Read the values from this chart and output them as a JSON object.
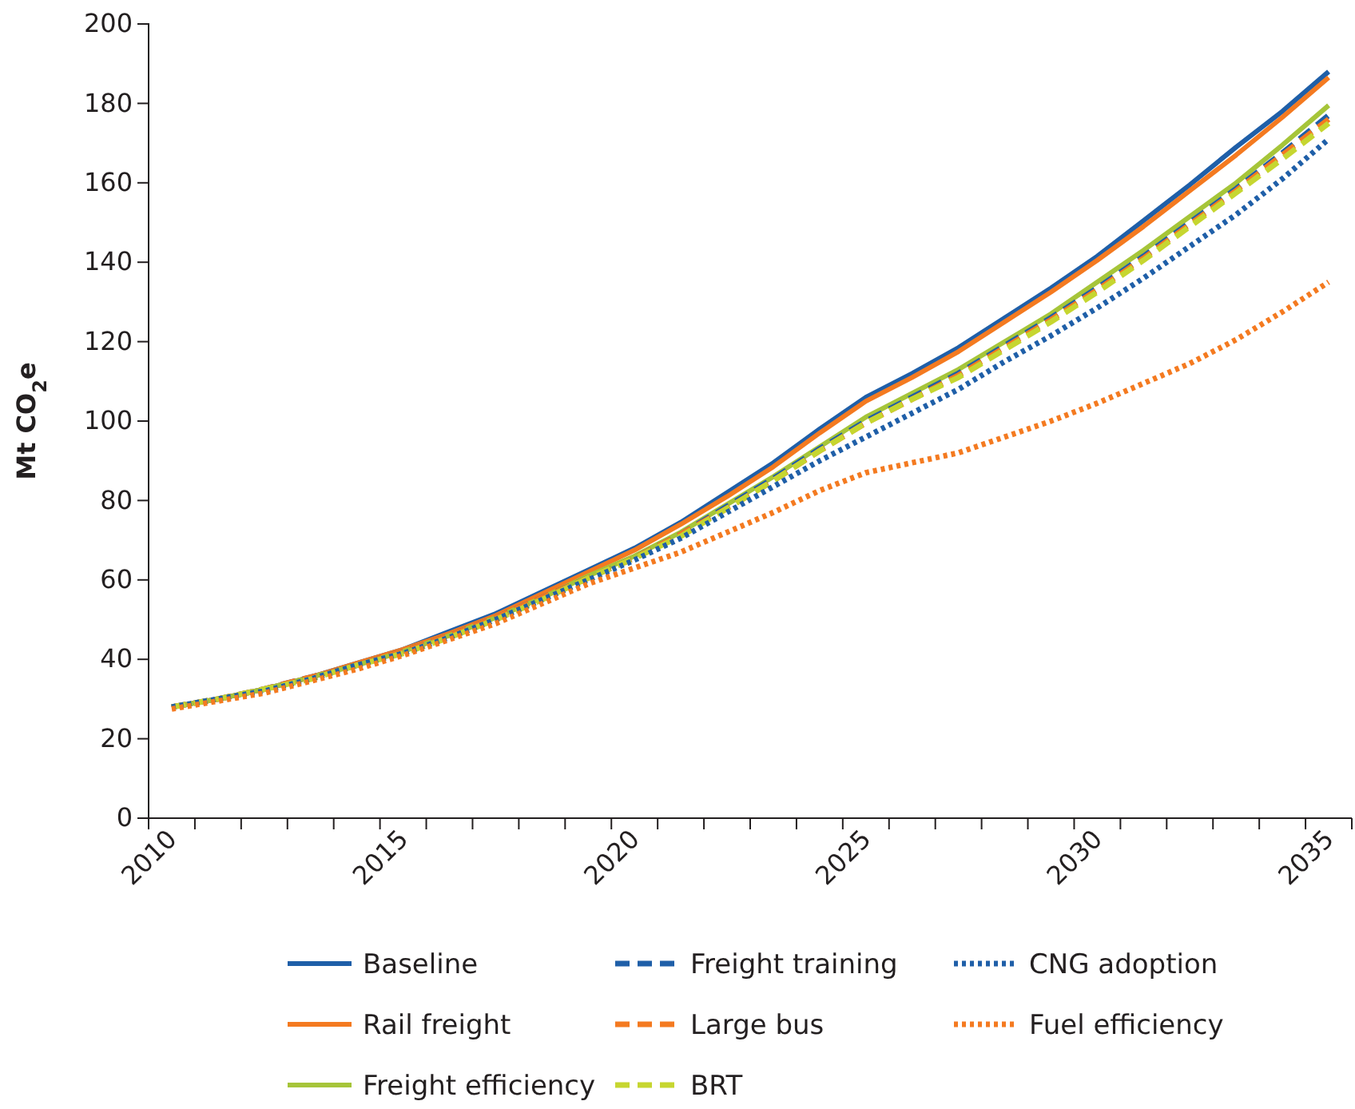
{
  "chart_data": {
    "type": "line",
    "ylabel": "Mt CO$_{2}$e",
    "categories": [
      "2010",
      null,
      null,
      null,
      null,
      "2015",
      null,
      null,
      null,
      null,
      "2020",
      null,
      null,
      null,
      null,
      "2025",
      null,
      null,
      null,
      null,
      "2030",
      null,
      null,
      null,
      null,
      "2035"
    ],
    "ylim": [
      0,
      200
    ],
    "yticks": [
      0,
      20,
      40,
      60,
      80,
      100,
      120,
      140,
      160,
      180,
      200
    ],
    "grid": false,
    "legend": "bottom",
    "series": [
      {
        "name": "Baseline",
        "color": "#1f5fa8",
        "line_style": "solid",
        "values": [
          28,
          30,
          32.5,
          35.5,
          39,
          42.5,
          47,
          51.5,
          57,
          62.5,
          68,
          74.5,
          82,
          89.5,
          98,
          106,
          112,
          118.5,
          126,
          133.5,
          141.5,
          150.5,
          159.5,
          169,
          178,
          188
        ]
      },
      {
        "name": "Rail freight",
        "color": "#f47a20",
        "line_style": "solid",
        "values": [
          28,
          30,
          32.5,
          35.5,
          39,
          42.5,
          46.5,
          51,
          56.5,
          62,
          67.5,
          74,
          81,
          88.5,
          97,
          105,
          111,
          117.5,
          125,
          132.5,
          140.5,
          149,
          158,
          167,
          176.5,
          186.5
        ]
      },
      {
        "name": "Freight efficiency",
        "color": "#a6c539",
        "line_style": "solid",
        "values": [
          28,
          30,
          32.5,
          35.5,
          38.5,
          42,
          46,
          50.5,
          55.5,
          61,
          66,
          72,
          79,
          86,
          93.5,
          101,
          107,
          113,
          120,
          127,
          135,
          143,
          151.5,
          160,
          169.5,
          179.5
        ]
      },
      {
        "name": "Freight training",
        "color": "#1f5fa8",
        "line_style": "dashed",
        "values": [
          28,
          30,
          32.5,
          35.5,
          38.5,
          42,
          46,
          50.5,
          55.5,
          60.5,
          65.5,
          71.5,
          78.5,
          85.5,
          93,
          100,
          106,
          112,
          119,
          126,
          133.5,
          141.5,
          150,
          158.5,
          167.5,
          177
        ]
      },
      {
        "name": "Large bus",
        "color": "#f47a20",
        "line_style": "dashed",
        "values": [
          28,
          30,
          32.5,
          35.5,
          38.5,
          42,
          46,
          50.5,
          55.5,
          60.5,
          65.5,
          71.5,
          78,
          85,
          92.5,
          99.5,
          105.5,
          111.5,
          118.5,
          125.5,
          133,
          141,
          149.5,
          158,
          167,
          176
        ]
      },
      {
        "name": "BRT",
        "color": "#c6d630",
        "line_style": "dashed",
        "values": [
          28,
          30,
          32.5,
          35,
          38.5,
          41.5,
          45.5,
          50,
          55,
          60.5,
          65.5,
          71,
          78,
          85,
          92.5,
          99.5,
          105.5,
          111,
          118,
          125,
          132.5,
          140.5,
          149,
          157.5,
          166,
          175
        ]
      },
      {
        "name": "CNG adoption",
        "color": "#1f5fa8",
        "line_style": "dotted",
        "values": [
          28,
          30,
          32,
          35,
          38.5,
          41.5,
          45.5,
          50,
          55,
          60,
          65,
          70.5,
          77,
          83.5,
          90,
          96,
          102,
          108,
          115,
          121.5,
          128.5,
          136,
          144,
          152,
          161,
          171
        ]
      },
      {
        "name": "Fuel efficiency",
        "color": "#f47a20",
        "line_style": "dotted",
        "values": [
          27.5,
          29.5,
          31.5,
          34.5,
          37.5,
          41,
          45,
          49,
          54,
          59,
          63,
          67,
          72,
          77,
          82.5,
          87,
          89.5,
          92,
          96,
          100,
          104.5,
          109.5,
          114.5,
          120.5,
          127.5,
          135
        ]
      }
    ]
  }
}
